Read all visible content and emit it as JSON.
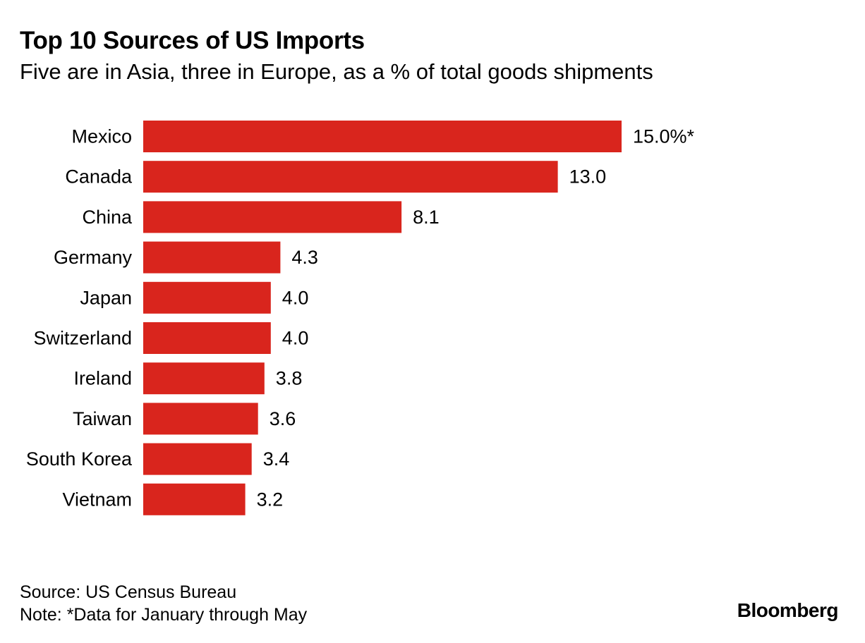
{
  "title": "Top 10 Sources of US Imports",
  "subtitle": "Five are in Asia, three in Europe, as a % of total goods shipments",
  "footer": {
    "source": "Source: US Census Bureau",
    "note": "Note: *Data for January through May",
    "brand": "Bloomberg"
  },
  "colors": {
    "bar": "#d9251d"
  },
  "chart_data": {
    "type": "bar",
    "orientation": "horizontal",
    "categories": [
      "Mexico",
      "Canada",
      "China",
      "Germany",
      "Japan",
      "Switzerland",
      "Ireland",
      "Taiwan",
      "South Korea",
      "Vietnam"
    ],
    "values": [
      15.0,
      13.0,
      8.1,
      4.3,
      4.0,
      4.0,
      3.8,
      3.6,
      3.4,
      3.2
    ],
    "value_labels": [
      "15.0%*",
      "13.0",
      "8.1",
      "4.3",
      "4.0",
      "4.0",
      "3.8",
      "3.6",
      "3.4",
      "3.2"
    ],
    "title": "Top 10 Sources of US Imports",
    "xlabel": "",
    "ylabel": "",
    "xlim": [
      0,
      15
    ],
    "grid": false,
    "legend": "none"
  }
}
